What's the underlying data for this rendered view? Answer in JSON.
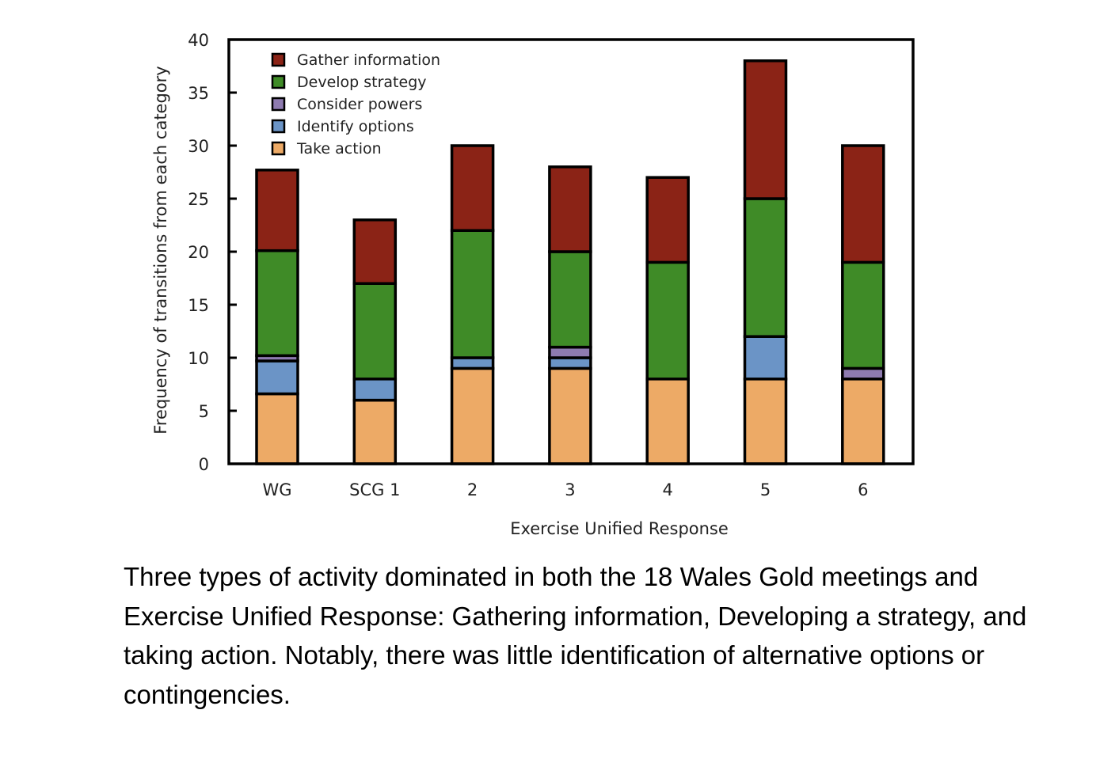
{
  "chart_data": {
    "type": "bar",
    "stacked": true,
    "title": "",
    "xlabel": "Exercise Unified Response",
    "ylabel": "Frequency of transitions from each category",
    "ylim": [
      0,
      40
    ],
    "yticks": [
      0,
      5,
      10,
      15,
      20,
      25,
      30,
      35,
      40
    ],
    "categories": [
      "WG",
      "SCG 1",
      "2",
      "3",
      "4",
      "5",
      "6"
    ],
    "legend_position": "top-left",
    "series": [
      {
        "name": "Take action",
        "color": "#EDAA66",
        "values": [
          6.6,
          6,
          9,
          9,
          8,
          8,
          8
        ]
      },
      {
        "name": "Identify options",
        "color": "#6B94C6",
        "values": [
          3.1,
          2,
          1,
          1,
          0,
          4,
          0
        ]
      },
      {
        "name": "Consider powers",
        "color": "#8E7BB0",
        "values": [
          0.5,
          0,
          0,
          1,
          0,
          0,
          1
        ]
      },
      {
        "name": "Develop strategy",
        "color": "#3F8B27",
        "values": [
          9.9,
          9,
          12,
          9,
          11,
          13,
          10
        ]
      },
      {
        "name": "Gather information",
        "color": "#8B2316",
        "values": [
          7.6,
          6,
          8,
          8,
          8,
          13,
          11
        ]
      }
    ],
    "legend_order": [
      "Gather information",
      "Develop strategy",
      "Consider powers",
      "Identify options",
      "Take action"
    ]
  },
  "caption": "Three types of activity dominated in both the 18 Wales Gold meetings and Exercise Unified Response: Gathering information, Developing a strategy, and taking action.  Notably, there was little identification of alternative options or contingencies."
}
